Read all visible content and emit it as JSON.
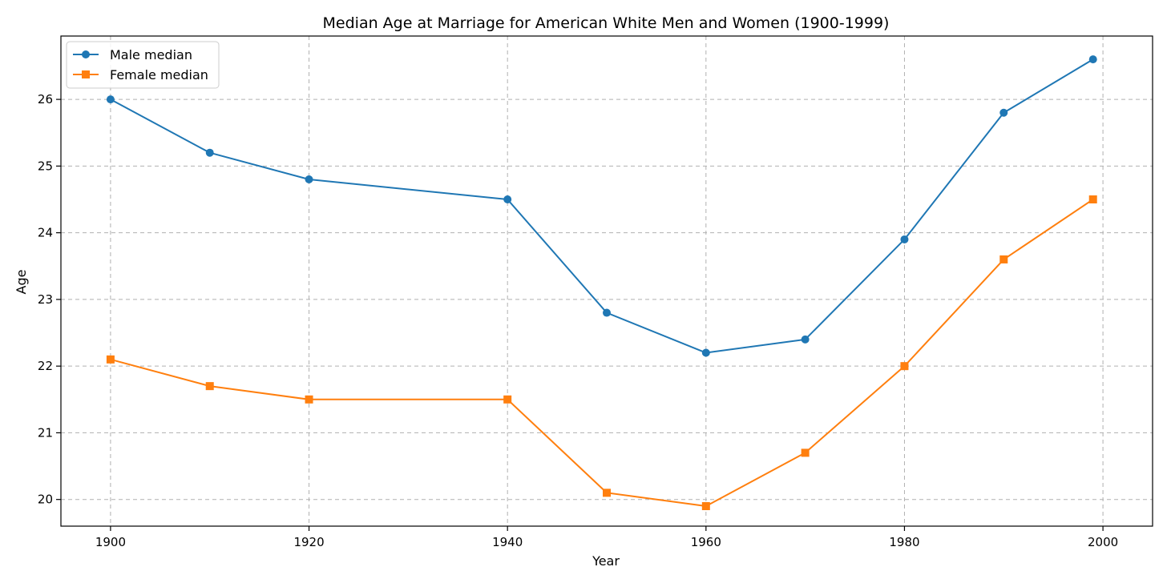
{
  "chart_data": {
    "type": "line",
    "title": "Median Age at Marriage for American White Men and Women (1900-1999)",
    "xlabel": "Year",
    "ylabel": "Age",
    "xlim": [
      1895,
      2005
    ],
    "ylim": [
      19.6,
      26.95
    ],
    "xticks": [
      1900,
      1920,
      1940,
      1960,
      1980,
      2000
    ],
    "yticks": [
      20,
      21,
      22,
      23,
      24,
      25,
      26
    ],
    "grid": true,
    "legend_position": "top-left",
    "x": [
      1900,
      1910,
      1920,
      1940,
      1950,
      1960,
      1970,
      1980,
      1990,
      1999
    ],
    "series": [
      {
        "name": "Male median",
        "marker": "circle",
        "color": "#1f77b4",
        "values": [
          26.0,
          25.2,
          24.8,
          24.5,
          22.8,
          22.2,
          22.4,
          23.9,
          25.8,
          26.6
        ]
      },
      {
        "name": "Female median",
        "marker": "square",
        "color": "#ff7f0e",
        "values": [
          22.1,
          21.7,
          21.5,
          21.5,
          20.1,
          19.9,
          20.7,
          22.0,
          23.6,
          24.5
        ]
      }
    ]
  }
}
